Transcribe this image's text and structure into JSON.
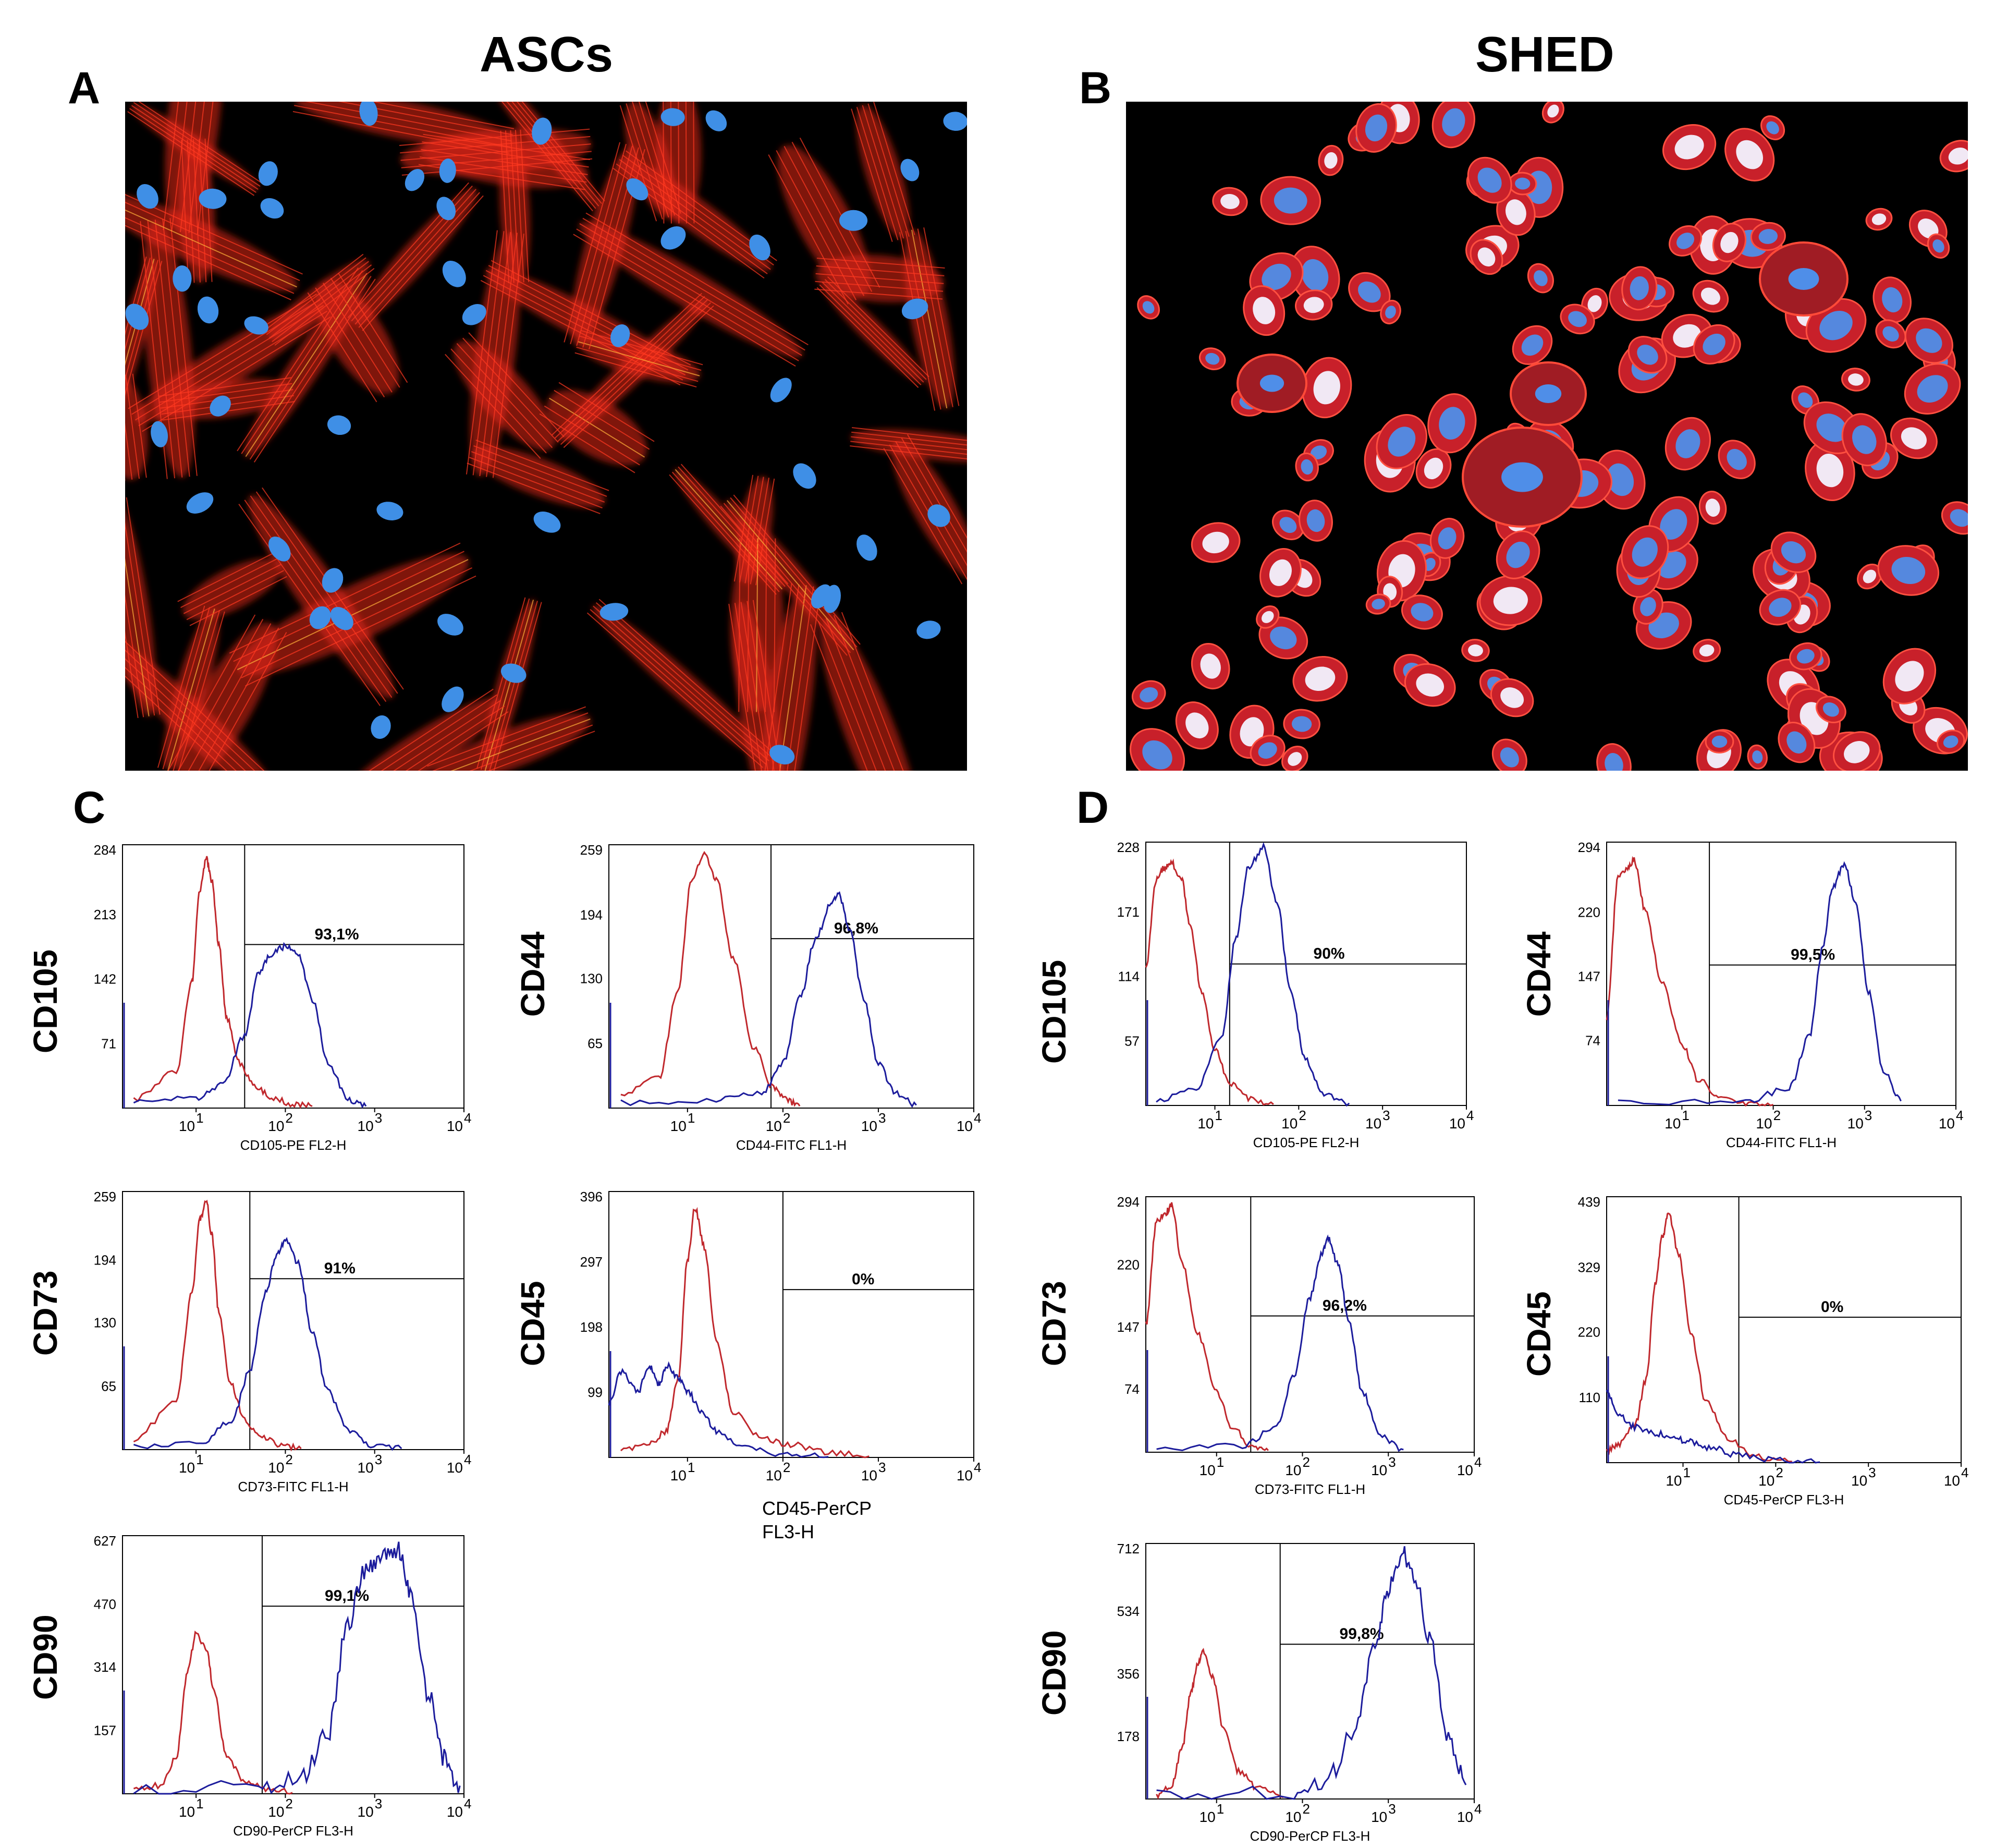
{
  "figure": {
    "titles": {
      "left": "ASCs",
      "right": "SHED"
    },
    "panels": {
      "A": {
        "letter": "A"
      },
      "B": {
        "letter": "B"
      },
      "C": {
        "letter": "C"
      },
      "D": {
        "letter": "D"
      }
    }
  },
  "colors": {
    "isotype": "#c0282d",
    "marker": "#1c1c9c",
    "micro_bg": "#000000",
    "actin": "#e8281a",
    "nucleus": "#3f8fe6"
  },
  "chart_data": [
    {
      "id": "C-CD105",
      "type": "histogram",
      "panel": "C",
      "marker": "CD105",
      "xlabel": "CD105-PE FL2-H",
      "x_ticks": [
        "10",
        "10",
        "10",
        "10"
      ],
      "x_tick_exps": [
        "1",
        "2",
        "3",
        "4"
      ],
      "xscale": "log",
      "y_ticks": [
        "284",
        "213",
        "142",
        "71"
      ],
      "y_tick_values": [
        284,
        213,
        142,
        71
      ],
      "ylim": [
        0,
        284
      ],
      "gate_label": "93,1%",
      "gate_x": 35,
      "gate_y": 180,
      "isotype_peak": {
        "x": 13,
        "y": 275
      },
      "marker_peak": {
        "x": 100,
        "y": 178
      },
      "series": [
        {
          "role": "isotype",
          "x": [
            2,
            6,
            9,
            11,
            13,
            15,
            18,
            22,
            30,
            45,
            70,
            120,
            200
          ],
          "y": [
            10,
            40,
            140,
            240,
            275,
            250,
            180,
            100,
            50,
            25,
            12,
            5,
            2
          ]
        },
        {
          "role": "marker",
          "x": [
            2,
            10,
            20,
            35,
            50,
            70,
            100,
            140,
            200,
            300,
            500,
            800
          ],
          "y": [
            8,
            10,
            25,
            80,
            150,
            170,
            178,
            168,
            120,
            50,
            10,
            2
          ]
        }
      ]
    },
    {
      "id": "C-CD44",
      "type": "histogram",
      "panel": "C",
      "marker": "CD44",
      "xlabel": "CD44-FITC FL1-H",
      "x_ticks": [
        "10",
        "10",
        "10",
        "10"
      ],
      "x_tick_exps": [
        "1",
        "2",
        "3",
        "4"
      ],
      "xscale": "log",
      "y_ticks": [
        "259",
        "194",
        "130",
        "65"
      ],
      "y_tick_values": [
        259,
        194,
        130,
        65
      ],
      "ylim": [
        0,
        259
      ],
      "gate_label": "96,8%",
      "gate_x": 75,
      "gate_y": 170,
      "isotype_peak": {
        "x": 15,
        "y": 255
      },
      "marker_peak": {
        "x": 380,
        "y": 215
      },
      "series": [
        {
          "role": "isotype",
          "x": [
            2,
            5,
            8,
            11,
            15,
            20,
            30,
            50,
            80,
            110,
            150
          ],
          "y": [
            15,
            30,
            120,
            230,
            255,
            230,
            150,
            60,
            20,
            8,
            2
          ]
        },
        {
          "role": "marker",
          "x": [
            2,
            20,
            60,
            100,
            150,
            220,
            320,
            380,
            500,
            700,
            1000,
            1500,
            2500
          ],
          "y": [
            5,
            8,
            15,
            45,
            110,
            170,
            205,
            215,
            180,
            110,
            45,
            15,
            3
          ]
        }
      ]
    },
    {
      "id": "C-CD73",
      "type": "histogram",
      "panel": "C",
      "marker": "CD73",
      "xlabel": "CD73-FITC FL1-H",
      "x_ticks": [
        "10",
        "10",
        "10",
        "10"
      ],
      "x_tick_exps": [
        "1",
        "2",
        "3",
        "4"
      ],
      "xscale": "log",
      "y_ticks": [
        "259",
        "194",
        "130",
        "65"
      ],
      "y_tick_values": [
        259,
        194,
        130,
        65
      ],
      "ylim": [
        0,
        259
      ],
      "gate_label": "91%",
      "gate_x": 40,
      "gate_y": 175,
      "isotype_peak": {
        "x": 13,
        "y": 255
      },
      "marker_peak": {
        "x": 100,
        "y": 215
      },
      "series": [
        {
          "role": "isotype",
          "x": [
            2,
            6,
            9,
            11,
            13,
            15,
            18,
            24,
            35,
            55,
            90,
            150
          ],
          "y": [
            10,
            50,
            160,
            235,
            255,
            220,
            140,
            70,
            30,
            12,
            4,
            1
          ]
        },
        {
          "role": "marker",
          "x": [
            2,
            12,
            25,
            40,
            60,
            80,
            100,
            140,
            200,
            300,
            500,
            900,
            2000
          ],
          "y": [
            4,
            8,
            30,
            80,
            160,
            200,
            215,
            190,
            120,
            60,
            20,
            5,
            1
          ]
        }
      ]
    },
    {
      "id": "C-CD45",
      "type": "histogram",
      "panel": "C",
      "marker": "CD45",
      "xlabel": "CD45-PerCP FL3-H",
      "x_ticks": [
        "10",
        "10",
        "10",
        "10"
      ],
      "x_tick_exps": [
        "1",
        "2",
        "3",
        "4"
      ],
      "xscale": "log",
      "y_ticks": [
        "396",
        "297",
        "198",
        "99"
      ],
      "y_tick_values": [
        396,
        297,
        198,
        99
      ],
      "ylim": [
        0,
        396
      ],
      "gate_label": "0%",
      "gate_x": 100,
      "gate_y": 255,
      "isotype_peak": {
        "x": 12,
        "y": 380
      },
      "marker_peak": {
        "x": 6,
        "y": 140
      },
      "series": [
        {
          "role": "isotype",
          "x": [
            2,
            4,
            6,
            8,
            10,
            12,
            15,
            20,
            30,
            60,
            120,
            300,
            800
          ],
          "y": [
            10,
            20,
            40,
            120,
            300,
            380,
            320,
            180,
            70,
            30,
            20,
            8,
            2
          ]
        },
        {
          "role": "marker",
          "x": [
            1.5,
            2,
            3,
            4,
            5,
            6,
            8,
            10,
            14,
            20,
            40,
            100,
            300
          ],
          "y": [
            80,
            130,
            100,
            140,
            110,
            140,
            120,
            100,
            70,
            40,
            15,
            5,
            1
          ]
        }
      ]
    },
    {
      "id": "C-CD90",
      "type": "histogram",
      "panel": "C",
      "marker": "CD90",
      "xlabel": "CD90-PerCP FL3-H",
      "x_ticks": [
        "10",
        "10",
        "10",
        "10"
      ],
      "x_tick_exps": [
        "1",
        "2",
        "3",
        "4"
      ],
      "xscale": "log",
      "y_ticks": [
        "627",
        "470",
        "314",
        "157"
      ],
      "y_tick_values": [
        627,
        470,
        314,
        157
      ],
      "ylim": [
        0,
        627
      ],
      "gate_label": "99,1%",
      "gate_x": 55,
      "gate_y": 465,
      "isotype_peak": {
        "x": 10,
        "y": 400
      },
      "marker_peak": {
        "x": 1800,
        "y": 610
      },
      "series": [
        {
          "role": "isotype",
          "x": [
            2,
            4,
            6,
            8,
            10,
            13,
            16,
            22,
            35,
            60,
            120
          ],
          "y": [
            10,
            20,
            90,
            300,
            400,
            360,
            250,
            90,
            30,
            12,
            3
          ]
        },
        {
          "role": "marker",
          "x": [
            2,
            50,
            150,
            300,
            500,
            800,
            1200,
            1800,
            2500,
            4000,
            6000,
            9000
          ],
          "y": [
            5,
            15,
            40,
            150,
            420,
            560,
            590,
            610,
            500,
            250,
            90,
            20
          ]
        }
      ]
    },
    {
      "id": "D-CD105",
      "type": "histogram",
      "panel": "D",
      "marker": "CD105",
      "xlabel": "CD105-PE FL2-H",
      "x_ticks": [
        "10",
        "10",
        "10",
        "10"
      ],
      "x_tick_exps": [
        "1",
        "2",
        "3",
        "4"
      ],
      "xscale": "log",
      "y_ticks": [
        "228",
        "171",
        "114",
        "57"
      ],
      "y_tick_values": [
        228,
        171,
        114,
        57
      ],
      "ylim": [
        0,
        228
      ],
      "gate_label": "90%",
      "gate_x": 15,
      "gate_y": 125,
      "isotype_peak": {
        "x": 3,
        "y": 215
      },
      "marker_peak": {
        "x": 38,
        "y": 228
      },
      "series": [
        {
          "role": "isotype",
          "x": [
            1.5,
            2,
            2.5,
            3,
            4,
            5,
            7,
            10,
            15,
            25,
            50
          ],
          "y": [
            120,
            200,
            210,
            215,
            200,
            160,
            100,
            50,
            20,
            6,
            1
          ]
        },
        {
          "role": "marker",
          "x": [
            2,
            6,
            12,
            18,
            25,
            38,
            55,
            80,
            120,
            200,
            400
          ],
          "y": [
            5,
            15,
            60,
            150,
            210,
            228,
            180,
            100,
            40,
            10,
            2
          ]
        }
      ]
    },
    {
      "id": "D-CD44",
      "type": "histogram",
      "panel": "D",
      "marker": "CD44",
      "xlabel": "CD44-FITC FL1-H",
      "x_ticks": [
        "10",
        "10",
        "10",
        "10"
      ],
      "x_tick_exps": [
        "1",
        "2",
        "3",
        "4"
      ],
      "xscale": "log",
      "y_ticks": [
        "294",
        "220",
        "147",
        "74"
      ],
      "y_tick_values": [
        294,
        220,
        147,
        74
      ],
      "ylim": [
        0,
        294
      ],
      "gate_label": "99,5%",
      "gate_x": 20,
      "gate_y": 160,
      "isotype_peak": {
        "x": 3,
        "y": 280
      },
      "marker_peak": {
        "x": 600,
        "y": 275
      },
      "series": [
        {
          "role": "isotype",
          "x": [
            1.5,
            2,
            2.5,
            3,
            4,
            6,
            10,
            15,
            25,
            50,
            100
          ],
          "y": [
            100,
            260,
            270,
            280,
            220,
            140,
            70,
            30,
            10,
            3,
            1
          ]
        },
        {
          "role": "marker",
          "x": [
            2,
            50,
            150,
            250,
            350,
            450,
            600,
            800,
            1100,
            1600,
            2500
          ],
          "y": [
            3,
            5,
            20,
            80,
            180,
            250,
            275,
            230,
            130,
            40,
            5
          ]
        }
      ]
    },
    {
      "id": "D-CD73",
      "type": "histogram",
      "panel": "D",
      "marker": "CD73",
      "xlabel": "CD73-FITC FL1-H",
      "x_ticks": [
        "10",
        "10",
        "10",
        "10"
      ],
      "x_tick_exps": [
        "1",
        "2",
        "3",
        "4"
      ],
      "xscale": "log",
      "y_ticks": [
        "294",
        "220",
        "147",
        "74"
      ],
      "y_tick_values": [
        294,
        220,
        147,
        74
      ],
      "ylim": [
        0,
        294
      ],
      "gate_label": "96,2%",
      "gate_x": 25,
      "gate_y": 160,
      "isotype_peak": {
        "x": 3,
        "y": 290
      },
      "marker_peak": {
        "x": 200,
        "y": 250
      },
      "series": [
        {
          "role": "isotype",
          "x": [
            1.5,
            2,
            2.5,
            3,
            4,
            6,
            10,
            15,
            25,
            40
          ],
          "y": [
            150,
            270,
            280,
            290,
            220,
            140,
            70,
            30,
            8,
            2
          ]
        },
        {
          "role": "marker",
          "x": [
            2,
            20,
            50,
            80,
            120,
            170,
            200,
            260,
            350,
            500,
            800,
            1500
          ],
          "y": [
            5,
            8,
            30,
            90,
            180,
            235,
            250,
            220,
            150,
            70,
            20,
            3
          ]
        }
      ]
    },
    {
      "id": "D-CD45",
      "type": "histogram",
      "panel": "D",
      "marker": "CD45",
      "xlabel": "CD45-PerCP FL3-H",
      "x_ticks": [
        "10",
        "10",
        "10",
        "10"
      ],
      "x_tick_exps": [
        "1",
        "2",
        "3",
        "4"
      ],
      "xscale": "log",
      "y_ticks": [
        "439",
        "329",
        "220",
        "110"
      ],
      "y_tick_values": [
        439,
        329,
        220,
        110
      ],
      "ylim": [
        0,
        439
      ],
      "gate_label": "0%",
      "gate_x": 40,
      "gate_y": 245,
      "isotype_peak": {
        "x": 7,
        "y": 420
      },
      "marker_peak": {
        "x": 1.5,
        "y": 120
      },
      "series": [
        {
          "role": "isotype",
          "x": [
            1.5,
            2,
            3,
            4,
            5,
            6,
            7,
            9,
            12,
            18,
            30,
            60,
            150
          ],
          "y": [
            20,
            30,
            60,
            140,
            300,
            380,
            420,
            350,
            220,
            100,
            40,
            10,
            2
          ]
        },
        {
          "role": "marker",
          "x": [
            1.5,
            2,
            3,
            5,
            8,
            12,
            20,
            40,
            100,
            300
          ],
          "y": [
            120,
            80,
            60,
            50,
            40,
            35,
            25,
            12,
            4,
            1
          ]
        }
      ]
    },
    {
      "id": "D-CD90",
      "type": "histogram",
      "panel": "D",
      "marker": "CD90",
      "xlabel": "CD90-PerCP FL3-H",
      "x_ticks": [
        "10",
        "10",
        "10",
        "10"
      ],
      "x_tick_exps": [
        "1",
        "2",
        "3",
        "4"
      ],
      "xscale": "log",
      "y_ticks": [
        "712",
        "534",
        "356",
        "178"
      ],
      "y_tick_values": [
        712,
        534,
        356,
        178
      ],
      "ylim": [
        0,
        712
      ],
      "gate_label": "99,8%",
      "gate_x": 55,
      "gate_y": 440,
      "isotype_peak": {
        "x": 7,
        "y": 420
      },
      "marker_peak": {
        "x": 1500,
        "y": 700
      },
      "series": [
        {
          "role": "isotype",
          "x": [
            2,
            3,
            4,
            5,
            6,
            7,
            9,
            12,
            18,
            30,
            60
          ],
          "y": [
            10,
            40,
            150,
            300,
            380,
            420,
            350,
            200,
            80,
            30,
            5
          ]
        },
        {
          "role": "marker",
          "x": [
            2,
            80,
            200,
            400,
            700,
            1000,
            1500,
            2000,
            3000,
            5000,
            8000
          ],
          "y": [
            5,
            20,
            60,
            200,
            420,
            600,
            700,
            640,
            450,
            180,
            40
          ]
        }
      ]
    }
  ]
}
